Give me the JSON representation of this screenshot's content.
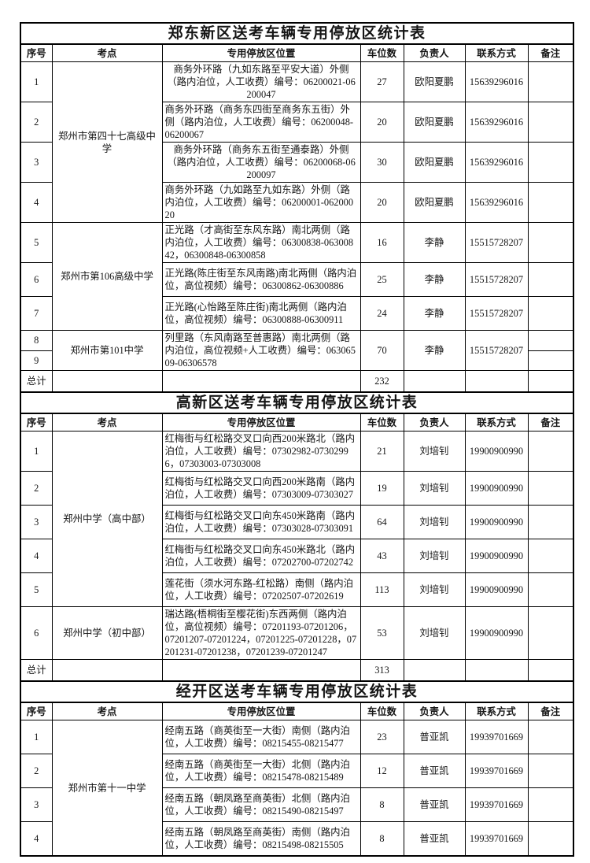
{
  "columns": [
    "序号",
    "考点",
    "专用停放区位置",
    "车位数",
    "负责人",
    "联系方式",
    "备注"
  ],
  "tables": [
    {
      "title": "郑东新区送考车辆专用停放区统计表",
      "rows": [
        {
          "type": "data",
          "cells": [
            {
              "text": "1"
            },
            {
              "text": "郑州市第四十七高级中学",
              "rowspan": 4
            },
            {
              "text": "商务外环路（九如东路至平安大道）外侧（路内泊位，人工收费）编号：06200021-06200047",
              "align": "center"
            },
            {
              "text": "27"
            },
            {
              "text": "欧阳夏鹏"
            },
            {
              "text": "15639296016"
            },
            {
              "text": ""
            }
          ]
        },
        {
          "type": "data",
          "cells": [
            {
              "text": "2"
            },
            null,
            {
              "text": "商务外环路（商务东四街至商务东五街）外侧（路内泊位，人工收费）编号：06200048-06200067"
            },
            {
              "text": "20"
            },
            {
              "text": "欧阳夏鹏"
            },
            {
              "text": "15639296016"
            },
            {
              "text": ""
            }
          ]
        },
        {
          "type": "data",
          "cells": [
            {
              "text": "3"
            },
            null,
            {
              "text": "商务外环路（商务东五街至通泰路）外侧（路内泊位，人工收费）编号：06200068-06200097",
              "align": "center"
            },
            {
              "text": "30"
            },
            {
              "text": "欧阳夏鹏"
            },
            {
              "text": "15639296016"
            },
            {
              "text": ""
            }
          ]
        },
        {
          "type": "data",
          "cells": [
            {
              "text": "4"
            },
            null,
            {
              "text": "商务外环路（九如路至九如东路）外侧（路内泊位，人工收费）编号：06200001-06200020"
            },
            {
              "text": "20"
            },
            {
              "text": "欧阳夏鹏"
            },
            {
              "text": "15639296016"
            },
            {
              "text": ""
            }
          ]
        },
        {
          "type": "data",
          "cells": [
            {
              "text": "5"
            },
            {
              "text": "郑州市第106高级中学",
              "rowspan": 3
            },
            {
              "text": "正光路（才高街至东风东路）南北两侧（路内泊位，人工收费）编号：06300838-06300842，06300848-06300858"
            },
            {
              "text": "16"
            },
            {
              "text": "李静"
            },
            {
              "text": "15515728207"
            },
            {
              "text": ""
            }
          ]
        },
        {
          "type": "data",
          "cells": [
            {
              "text": "6"
            },
            null,
            {
              "text": "正光路(陈庄街至东风南路)南北两侧（路内泊位，高位视频）编号：06300862-06300886"
            },
            {
              "text": "25"
            },
            {
              "text": "李静"
            },
            {
              "text": "15515728207"
            },
            {
              "text": ""
            }
          ]
        },
        {
          "type": "data",
          "cells": [
            {
              "text": "7"
            },
            null,
            {
              "text": "正光路(心怡路至陈庄街)南北两侧（路内泊位，高位视频）编号：06300888-06300911"
            },
            {
              "text": "24"
            },
            {
              "text": "李静"
            },
            {
              "text": "15515728207"
            },
            {
              "text": ""
            }
          ]
        },
        {
          "type": "half",
          "cells": [
            {
              "text": "8"
            },
            {
              "text": "郑州市第101中学",
              "rowspan": 2
            },
            {
              "text": "列里路（东风南路至普惠路）南北两侧（路内泊位，高位视频+人工收费）编号：06306509-06306578",
              "rowspan": 2
            },
            {
              "text": "70",
              "rowspan": 2
            },
            {
              "text": "李静",
              "rowspan": 2
            },
            {
              "text": "15515728207",
              "rowspan": 2
            },
            {
              "text": ""
            }
          ]
        },
        {
          "type": "half",
          "cells": [
            {
              "text": "9"
            },
            null,
            null,
            null,
            null,
            null,
            {
              "text": ""
            }
          ]
        },
        {
          "type": "total",
          "cells": [
            {
              "text": "总计"
            },
            {
              "text": ""
            },
            {
              "text": ""
            },
            {
              "text": "232"
            },
            {
              "text": ""
            },
            {
              "text": ""
            },
            {
              "text": ""
            }
          ]
        }
      ]
    },
    {
      "title": "高新区送考车辆专用停放区统计表",
      "rows": [
        {
          "type": "data",
          "cells": [
            {
              "text": "1"
            },
            {
              "text": "郑州中学（高中部）",
              "rowspan": 5
            },
            {
              "text": "红梅街与红松路交叉口向西200米路北（路内泊位，人工收费）编号：07302982-07302996，07303003-07303008"
            },
            {
              "text": "21"
            },
            {
              "text": "刘培钊"
            },
            {
              "text": "19900900990"
            },
            {
              "text": ""
            }
          ]
        },
        {
          "type": "data",
          "cells": [
            {
              "text": "2"
            },
            null,
            {
              "text": "红梅街与红松路交叉口向西200米路南（路内泊位，人工收费）编号：07303009-07303027"
            },
            {
              "text": "19"
            },
            {
              "text": "刘培钊"
            },
            {
              "text": "19900900990"
            },
            {
              "text": ""
            }
          ]
        },
        {
          "type": "data",
          "cells": [
            {
              "text": "3"
            },
            null,
            {
              "text": "红梅街与红松路交叉口向东450米路南（路内泊位，人工收费）编号：07303028-07303091"
            },
            {
              "text": "64"
            },
            {
              "text": "刘培钊"
            },
            {
              "text": "19900900990"
            },
            {
              "text": ""
            }
          ]
        },
        {
          "type": "data",
          "cells": [
            {
              "text": "4"
            },
            null,
            {
              "text": "红梅街与红松路交叉口向东450米路北（路内泊位，人工收费）编号：07202700-07202742"
            },
            {
              "text": "43"
            },
            {
              "text": "刘培钊"
            },
            {
              "text": "19900900990"
            },
            {
              "text": ""
            }
          ]
        },
        {
          "type": "data",
          "cells": [
            {
              "text": "5"
            },
            null,
            {
              "text": "莲花街（须水河东路-红松路）南侧（路内泊位，人工收费）编号：07202507-07202619"
            },
            {
              "text": "113"
            },
            {
              "text": "刘培钊"
            },
            {
              "text": "19900900990"
            },
            {
              "text": ""
            }
          ]
        },
        {
          "type": "data",
          "cells": [
            {
              "text": "6"
            },
            {
              "text": "郑州中学（初中部）"
            },
            {
              "text": "瑞达路(梧桐街至樱花街)东西两侧（路内泊位，高位视频）编号：07201193-07201206，07201207-07201224，07201225-07201228，07201231-07201238，07201239-07201247"
            },
            {
              "text": "53"
            },
            {
              "text": "刘培钊"
            },
            {
              "text": "19900900990"
            },
            {
              "text": ""
            }
          ]
        },
        {
          "type": "total",
          "cells": [
            {
              "text": "总计"
            },
            {
              "text": ""
            },
            {
              "text": ""
            },
            {
              "text": "313"
            },
            {
              "text": ""
            },
            {
              "text": ""
            },
            {
              "text": ""
            }
          ]
        }
      ]
    },
    {
      "title": "经开区送考车辆专用停放区统计表",
      "rows": [
        {
          "type": "data",
          "cells": [
            {
              "text": "1"
            },
            {
              "text": "郑州市第十一中学",
              "rowspan": 4
            },
            {
              "text": "经南五路（商英街至一大街）南侧（路内泊位，人工收费）编号：08215455-08215477"
            },
            {
              "text": "23"
            },
            {
              "text": "普亚凯"
            },
            {
              "text": "19939701669"
            },
            {
              "text": ""
            }
          ]
        },
        {
          "type": "data",
          "cells": [
            {
              "text": "2"
            },
            null,
            {
              "text": "经南五路（商英街至一大街）北侧（路内泊位，人工收费）编号：08215478-08215489"
            },
            {
              "text": "12"
            },
            {
              "text": "普亚凯"
            },
            {
              "text": "19939701669"
            },
            {
              "text": ""
            }
          ]
        },
        {
          "type": "data",
          "cells": [
            {
              "text": "3"
            },
            null,
            {
              "text": "经南五路（朝凤路至商英街）北侧（路内泊位，人工收费）编号：08215490-08215497"
            },
            {
              "text": "8"
            },
            {
              "text": "普亚凯"
            },
            {
              "text": "19939701669"
            },
            {
              "text": ""
            }
          ]
        },
        {
          "type": "data",
          "cells": [
            {
              "text": "4"
            },
            null,
            {
              "text": "经南五路（朝凤路至商英街）南侧（路内泊位，人工收费）编号：08215498-08215505"
            },
            {
              "text": "8"
            },
            {
              "text": "普亚凯"
            },
            {
              "text": "19939701669"
            },
            {
              "text": ""
            }
          ]
        }
      ]
    }
  ]
}
